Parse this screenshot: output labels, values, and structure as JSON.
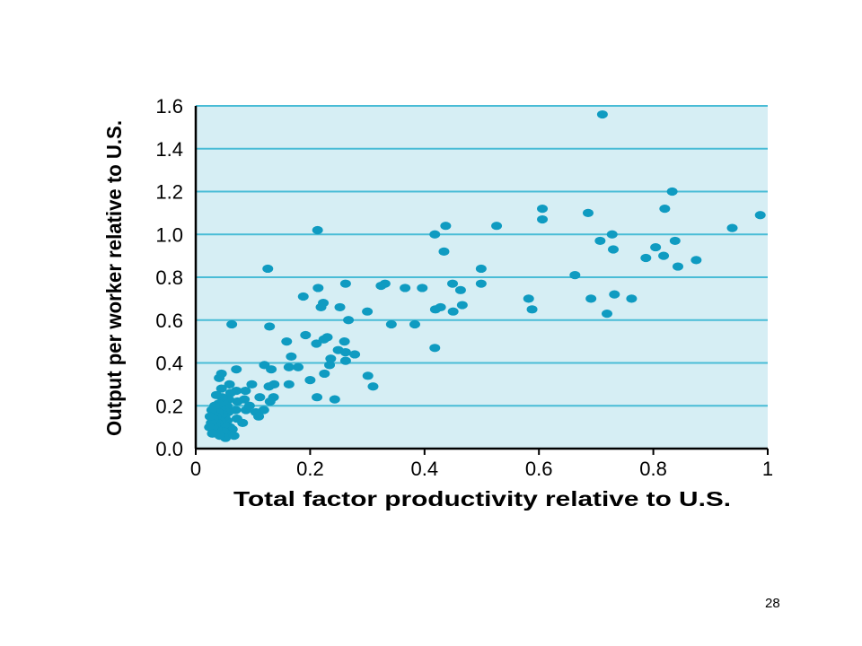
{
  "page": {
    "number": "28"
  },
  "chart_data": {
    "type": "scatter",
    "xlabel": "Total factor productivity relative to U.S.",
    "ylabel": "Output per worker relative to U.S.",
    "xlim": [
      0,
      1
    ],
    "ylim": [
      0,
      1.6
    ],
    "xticks": [
      "0",
      "0.2",
      "0.4",
      "0.6",
      "0.8",
      "1"
    ],
    "yticks": [
      "0.0",
      "0.2",
      "0.4",
      "0.6",
      "0.8",
      "1.0",
      "1.2",
      "1.4",
      "1.6"
    ],
    "grid": "horizontal",
    "colors": {
      "background": "#d6eef4",
      "grid": "#49bcd6",
      "point": "#0f9bc1"
    },
    "points": [
      [
        0.711,
        1.56
      ],
      [
        0.833,
        1.2
      ],
      [
        0.82,
        1.12
      ],
      [
        0.606,
        1.12
      ],
      [
        0.686,
        1.1
      ],
      [
        0.606,
        1.07
      ],
      [
        0.987,
        1.09
      ],
      [
        0.938,
        1.03
      ],
      [
        0.728,
        1.0
      ],
      [
        0.707,
        0.97
      ],
      [
        0.804,
        0.94
      ],
      [
        0.838,
        0.97
      ],
      [
        0.73,
        0.93
      ],
      [
        0.818,
        0.9
      ],
      [
        0.787,
        0.89
      ],
      [
        0.875,
        0.88
      ],
      [
        0.843,
        0.85
      ],
      [
        0.663,
        0.81
      ],
      [
        0.732,
        0.72
      ],
      [
        0.691,
        0.7
      ],
      [
        0.762,
        0.7
      ],
      [
        0.719,
        0.63
      ],
      [
        0.582,
        0.7
      ],
      [
        0.588,
        0.65
      ],
      [
        0.526,
        1.04
      ],
      [
        0.499,
        0.84
      ],
      [
        0.499,
        0.77
      ],
      [
        0.437,
        1.04
      ],
      [
        0.418,
        1.0
      ],
      [
        0.434,
        0.92
      ],
      [
        0.449,
        0.77
      ],
      [
        0.463,
        0.74
      ],
      [
        0.419,
        0.65
      ],
      [
        0.428,
        0.66
      ],
      [
        0.45,
        0.64
      ],
      [
        0.466,
        0.67
      ],
      [
        0.418,
        0.47
      ],
      [
        0.396,
        0.75
      ],
      [
        0.366,
        0.75
      ],
      [
        0.331,
        0.77
      ],
      [
        0.324,
        0.76
      ],
      [
        0.342,
        0.58
      ],
      [
        0.383,
        0.58
      ],
      [
        0.3,
        0.64
      ],
      [
        0.262,
        0.77
      ],
      [
        0.213,
        1.02
      ],
      [
        0.188,
        0.71
      ],
      [
        0.214,
        0.75
      ],
      [
        0.223,
        0.68
      ],
      [
        0.219,
        0.66
      ],
      [
        0.252,
        0.66
      ],
      [
        0.267,
        0.6
      ],
      [
        0.192,
        0.53
      ],
      [
        0.211,
        0.49
      ],
      [
        0.224,
        0.51
      ],
      [
        0.23,
        0.52
      ],
      [
        0.26,
        0.5
      ],
      [
        0.249,
        0.46
      ],
      [
        0.262,
        0.45
      ],
      [
        0.278,
        0.44
      ],
      [
        0.236,
        0.42
      ],
      [
        0.234,
        0.39
      ],
      [
        0.262,
        0.41
      ],
      [
        0.301,
        0.34
      ],
      [
        0.31,
        0.29
      ],
      [
        0.225,
        0.35
      ],
      [
        0.243,
        0.23
      ],
      [
        0.212,
        0.24
      ],
      [
        0.2,
        0.32
      ],
      [
        0.179,
        0.38
      ],
      [
        0.167,
        0.43
      ],
      [
        0.163,
        0.38
      ],
      [
        0.159,
        0.5
      ],
      [
        0.163,
        0.3
      ],
      [
        0.126,
        0.84
      ],
      [
        0.129,
        0.57
      ],
      [
        0.12,
        0.39
      ],
      [
        0.132,
        0.37
      ],
      [
        0.137,
        0.3
      ],
      [
        0.128,
        0.29
      ],
      [
        0.112,
        0.24
      ],
      [
        0.136,
        0.24
      ],
      [
        0.13,
        0.22
      ],
      [
        0.119,
        0.18
      ],
      [
        0.105,
        0.17
      ],
      [
        0.11,
        0.15
      ],
      [
        0.098,
        0.3
      ],
      [
        0.087,
        0.27
      ],
      [
        0.085,
        0.23
      ],
      [
        0.088,
        0.18
      ],
      [
        0.071,
        0.37
      ],
      [
        0.063,
        0.58
      ],
      [
        0.071,
        0.27
      ],
      [
        0.073,
        0.22
      ],
      [
        0.07,
        0.18
      ],
      [
        0.072,
        0.14
      ],
      [
        0.064,
        0.09
      ],
      [
        0.059,
        0.3
      ],
      [
        0.061,
        0.26
      ],
      [
        0.058,
        0.23
      ],
      [
        0.055,
        0.2
      ],
      [
        0.057,
        0.17
      ],
      [
        0.055,
        0.13
      ],
      [
        0.06,
        0.1
      ],
      [
        0.054,
        0.07
      ],
      [
        0.051,
        0.15
      ],
      [
        0.05,
        0.11
      ],
      [
        0.048,
        0.22
      ],
      [
        0.045,
        0.28
      ],
      [
        0.046,
        0.24
      ],
      [
        0.044,
        0.19
      ],
      [
        0.047,
        0.16
      ],
      [
        0.043,
        0.13
      ],
      [
        0.049,
        0.08
      ],
      [
        0.041,
        0.33
      ],
      [
        0.04,
        0.21
      ],
      [
        0.039,
        0.17
      ],
      [
        0.038,
        0.12
      ],
      [
        0.037,
        0.09
      ],
      [
        0.036,
        0.25
      ],
      [
        0.035,
        0.15
      ],
      [
        0.034,
        0.11
      ],
      [
        0.033,
        0.2
      ],
      [
        0.031,
        0.14
      ],
      [
        0.03,
        0.1
      ],
      [
        0.028,
        0.18
      ],
      [
        0.027,
        0.12
      ],
      [
        0.025,
        0.15
      ],
      [
        0.024,
        0.1
      ],
      [
        0.052,
        0.05
      ],
      [
        0.067,
        0.06
      ],
      [
        0.042,
        0.06
      ],
      [
        0.029,
        0.07
      ],
      [
        0.082,
        0.12
      ],
      [
        0.094,
        0.2
      ],
      [
        0.045,
        0.35
      ]
    ]
  }
}
